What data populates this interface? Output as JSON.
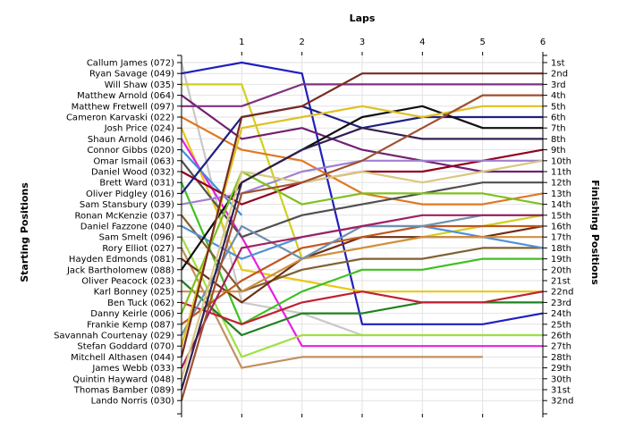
{
  "chart_data": {
    "type": "line",
    "title": "",
    "top_axis_label": "Laps",
    "left_axis_label": "Starting Positions",
    "right_axis_label": "Finishing Positions",
    "laps": [
      0,
      1,
      2,
      3,
      4,
      5,
      6
    ],
    "lap_tick_labels": [
      "1",
      "2",
      "3",
      "4",
      "5",
      "6"
    ],
    "y_inverted": true,
    "y_range": [
      1,
      32
    ],
    "grid": true,
    "grid_color": "#e2e2e2",
    "legend": "none",
    "starting_labels": [
      "Callum James (072)",
      "Ryan Savage (049)",
      "Will Shaw (035)",
      "Matthew Arnold (064)",
      "Matthew Fretwell (097)",
      "Cameron Karvaski (022)",
      "Josh Price (024)",
      "Shaun Arnold (046)",
      "Connor Gibbs (020)",
      "Omar Ismail (063)",
      "Daniel Wood (032)",
      "Brett Ward (031)",
      "Oliver Pidgley (016)",
      "Sam Stansbury (039)",
      "Ronan McKenzie (037)",
      "Daniel Fazzone (040)",
      "Sam Smelt (096)",
      "Rory Elliot (027)",
      "Hayden Edmonds (081)",
      "Jack Bartholomew (088)",
      "Oliver Peacock (023)",
      "Karl Bonney (025)",
      "Ben Tuck (062)",
      "Danny Keirle (006)",
      "Frankie Kemp (087)",
      "Savannah Courtenay (029)",
      "Stefan Goddard (070)",
      "Mitchell Althasen (044)",
      "James Webb (033)",
      "Quintin Hayward (048)",
      "Thomas Bamber (089)",
      "Lando Norris (030)"
    ],
    "finishing_labels": [
      "1st",
      "2nd",
      "3rd",
      "4th",
      "5th",
      "6th",
      "7th",
      "8th",
      "9th",
      "10th",
      "11th",
      "12th",
      "13th",
      "14th",
      "15th",
      "16th",
      "17th",
      "18th",
      "19th",
      "20th",
      "21st",
      "22nd",
      "23rd",
      "24th",
      "25th",
      "26th",
      "27th",
      "28th",
      "29th",
      "30th",
      "31st",
      "32nd"
    ],
    "series": [
      {
        "color": "#c8c8c8",
        "values": [
          1,
          23,
          24,
          26,
          26,
          26,
          26
        ]
      },
      {
        "color": "#1f1fc0",
        "values": [
          2,
          1,
          2,
          25,
          25,
          25,
          24
        ]
      },
      {
        "color": "#d0d020",
        "values": [
          3,
          3,
          19,
          18,
          17,
          16,
          15
        ]
      },
      {
        "color": "#702070",
        "values": [
          4,
          8,
          7,
          9,
          10,
          11,
          11
        ]
      },
      {
        "color": "#803080",
        "values": [
          5,
          5,
          3,
          3,
          3,
          3,
          3
        ]
      },
      {
        "color": "#e07820",
        "values": [
          6,
          9,
          10,
          13,
          14,
          14,
          13
        ]
      },
      {
        "color": "#e8c818",
        "values": [
          7,
          20,
          21,
          22,
          22,
          22,
          22
        ]
      },
      {
        "color": "#e820e0",
        "values": [
          8,
          17,
          27,
          27,
          27,
          27,
          27
        ]
      },
      {
        "color": "#4090d8",
        "values": [
          9,
          15,
          null,
          null,
          null,
          null,
          null
        ]
      },
      {
        "color": "#505050",
        "values": [
          10,
          17,
          15,
          14,
          13,
          12,
          12
        ]
      },
      {
        "color": "#900020",
        "values": [
          11,
          14,
          12,
          11,
          11,
          10,
          9
        ]
      },
      {
        "color": "#40c020",
        "values": [
          12,
          25,
          22,
          20,
          20,
          19,
          19
        ]
      },
      {
        "color": "#202080",
        "values": [
          13,
          6,
          5,
          7,
          6,
          6,
          6
        ]
      },
      {
        "color": "#a080d0",
        "values": [
          14,
          13,
          11,
          10,
          10,
          10,
          10
        ]
      },
      {
        "color": "#806030",
        "values": [
          15,
          22,
          20,
          19,
          19,
          18,
          18
        ]
      },
      {
        "color": "#5090d8",
        "values": [
          16,
          19,
          17,
          16,
          16,
          17,
          18
        ]
      },
      {
        "color": "#a0e040",
        "values": [
          17,
          28,
          26,
          26,
          26,
          26,
          26
        ]
      },
      {
        "color": "#c09060",
        "values": [
          18,
          29,
          28,
          28,
          28,
          28,
          null
        ]
      },
      {
        "color": "#703010",
        "values": [
          19,
          23,
          19,
          17,
          17,
          17,
          16
        ]
      },
      {
        "color": "#101010",
        "values": [
          20,
          12,
          9,
          6,
          5,
          7,
          7
        ]
      },
      {
        "color": "#208020",
        "values": [
          21,
          26,
          24,
          24,
          23,
          23,
          23
        ]
      },
      {
        "color": "#d09040",
        "values": [
          22,
          22,
          19,
          18,
          17,
          17,
          17
        ]
      },
      {
        "color": "#c02030",
        "values": [
          23,
          25,
          23,
          22,
          23,
          23,
          22
        ]
      },
      {
        "color": "#80c020",
        "values": [
          24,
          11,
          14,
          13,
          13,
          13,
          14
        ]
      },
      {
        "color": "#c05820",
        "values": [
          25,
          21,
          18,
          17,
          16,
          16,
          16
        ]
      },
      {
        "color": "#7090b0",
        "values": [
          26,
          16,
          19,
          16,
          16,
          15,
          15
        ]
      },
      {
        "color": "#e0c020",
        "values": [
          27,
          7,
          6,
          5,
          6,
          5,
          5
        ]
      },
      {
        "color": "#7a2a20",
        "values": [
          28,
          6,
          5,
          2,
          2,
          2,
          2
        ]
      },
      {
        "color": "#a02060",
        "values": [
          29,
          18,
          17,
          16,
          15,
          15,
          15
        ]
      },
      {
        "color": "#d8c880",
        "values": [
          30,
          11,
          12,
          11,
          12,
          11,
          10
        ]
      },
      {
        "color": "#302050",
        "values": [
          31,
          12,
          9,
          7,
          8,
          8,
          8
        ]
      },
      {
        "color": "#a05030",
        "values": [
          32,
          13,
          12,
          10,
          7,
          4,
          4
        ]
      }
    ]
  }
}
